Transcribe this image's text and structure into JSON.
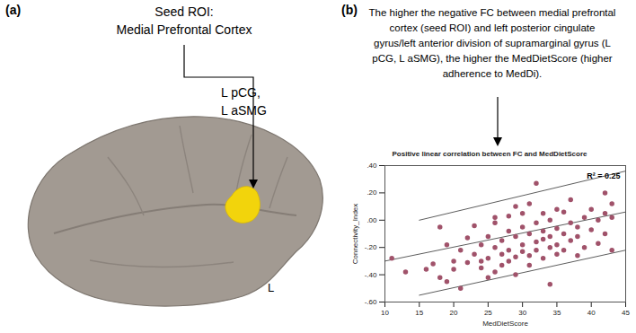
{
  "panel_a": {
    "label": "(a)",
    "seed_title": [
      "Seed ROI:",
      "Medial Prefrontal Cortex"
    ],
    "region_label": [
      "L pCG,",
      "L aSMG"
    ],
    "hemisphere": "L"
  },
  "panel_b": {
    "label": "(b)",
    "text": [
      "The higher the negative FC between medial prefrontal",
      "cortex (seed ROI) and left posterior cingulate",
      "gyrus/left anterior division of supramarginal gyrus (L",
      "pCG, L aSMG), the higher the MedDietScore (higher",
      "adherence to MedDi)."
    ]
  },
  "chart_data": {
    "type": "scatter",
    "title": "Positive linear correlation between FC and MedDietScore",
    "x_label": "MedDietScore",
    "y_label": "Connectivity_Index",
    "annotation": "R² = 0.25",
    "color": "#a0526a",
    "x": [
      11,
      13,
      16,
      17,
      18,
      18,
      19,
      19,
      20,
      20,
      21,
      21,
      22,
      22,
      23,
      23,
      24,
      24,
      24,
      25,
      25,
      25,
      26,
      26,
      26,
      26,
      27,
      27,
      27,
      28,
      28,
      28,
      28,
      29,
      29,
      29,
      29,
      30,
      30,
      30,
      30,
      31,
      31,
      31,
      31,
      32,
      32,
      32,
      32,
      33,
      33,
      33,
      33,
      34,
      34,
      34,
      34,
      35,
      35,
      35,
      35,
      36,
      36,
      36,
      37,
      37,
      37,
      38,
      38,
      38,
      39,
      39,
      40,
      40,
      41,
      41,
      42,
      42,
      42,
      43,
      43,
      43
    ],
    "y": [
      -0.28,
      -0.38,
      -0.36,
      -0.32,
      -0.05,
      -0.42,
      -0.45,
      -0.18,
      -0.3,
      -0.36,
      -0.22,
      -0.5,
      -0.31,
      -0.13,
      -0.25,
      -0.04,
      -0.35,
      -0.3,
      -0.18,
      -0.12,
      -0.28,
      -0.42,
      -0.02,
      -0.2,
      -0.38,
      0.02,
      -0.15,
      -0.25,
      -0.33,
      -0.08,
      -0.22,
      -0.3,
      0.03,
      0.1,
      -0.12,
      -0.27,
      -0.4,
      -0.05,
      -0.18,
      -0.23,
      0.05,
      -0.1,
      -0.26,
      -0.33,
      0.12,
      -0.02,
      -0.16,
      -0.22,
      0.27,
      -0.08,
      -0.14,
      -0.28,
      0.05,
      -0.12,
      -0.2,
      -0.47,
      0.0,
      -0.06,
      -0.18,
      -0.25,
      0.08,
      0.06,
      -0.1,
      -0.22,
      -0.02,
      -0.15,
      0.15,
      -0.05,
      -0.12,
      -0.26,
      0.02,
      -0.2,
      0.08,
      -0.07,
      0.0,
      -0.17,
      0.2,
      0.05,
      -0.1,
      0.12,
      -0.22,
      0.02
    ],
    "lines": [
      {
        "x": [
          15,
          45
        ],
        "y": [
          0.0,
          0.36
        ]
      },
      {
        "x": [
          10,
          45
        ],
        "y": [
          -0.3,
          0.06
        ]
      },
      {
        "x": [
          15,
          45
        ],
        "y": [
          -0.55,
          -0.22
        ]
      }
    ],
    "xlim": [
      10,
      45
    ],
    "xticks": [
      10,
      15,
      20,
      25,
      30,
      35,
      40,
      45
    ],
    "ylim": [
      -0.6,
      0.4
    ],
    "yticks": [
      {
        "value": -0.6,
        "label": "-.60"
      },
      {
        "value": -0.4,
        "label": "-.40"
      },
      {
        "value": -0.2,
        "label": "-.20"
      },
      {
        "value": 0,
        "label": ".00"
      },
      {
        "value": 0.2,
        "label": ".20"
      },
      {
        "value": 0.4,
        "label": ".40"
      }
    ],
    "grid": false
  }
}
